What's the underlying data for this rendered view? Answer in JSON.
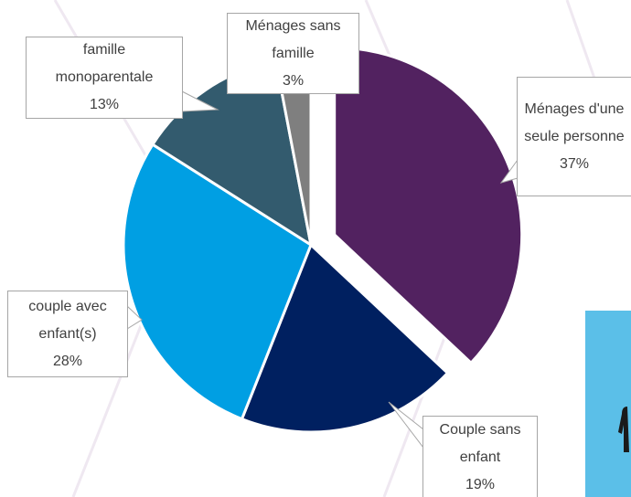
{
  "chart_data": {
    "type": "pie",
    "categories": [
      "Ménages d'une seule personne",
      "Couple sans enfant",
      "couple avec enfant(s)",
      "famille monoparentale",
      "Ménages sans famille"
    ],
    "values": [
      37,
      19,
      28,
      13,
      3
    ],
    "value_labels": [
      "37%",
      "19%",
      "28%",
      "13%",
      "3%"
    ],
    "colors": [
      "#522260",
      "#002060",
      "#009fe3",
      "#335b6e",
      "#7f7f7f"
    ]
  }
}
